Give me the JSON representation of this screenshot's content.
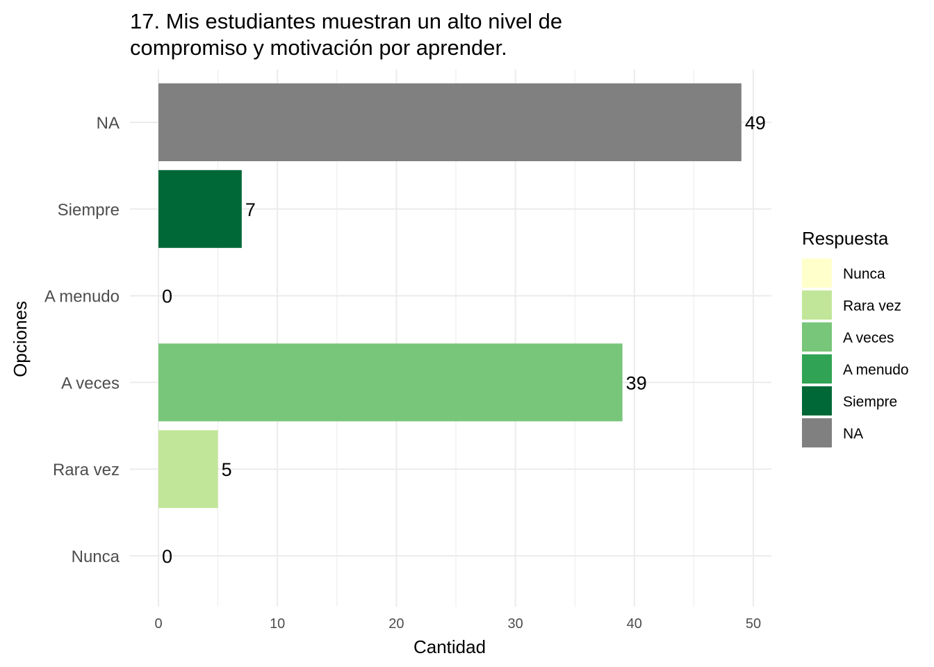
{
  "chart_data": {
    "type": "bar",
    "orientation": "horizontal",
    "title": "17. Mis estudiantes muestran un alto nivel de compromiso y motivación por aprender.",
    "title_lines": [
      "17. Mis estudiantes muestran un alto nivel de",
      "compromiso y motivación por aprender."
    ],
    "xlabel": "Cantidad",
    "ylabel": "Opciones",
    "xlim": [
      0,
      51.5
    ],
    "x_ticks": [
      0,
      10,
      20,
      30,
      40,
      50
    ],
    "categories": [
      "Nunca",
      "Rara vez",
      "A veces",
      "A menudo",
      "Siempre",
      "NA"
    ],
    "values": [
      0,
      5,
      39,
      0,
      7,
      49
    ],
    "colors": {
      "Nunca": "#ffffcc",
      "Rara vez": "#c2e699",
      "A veces": "#78c679",
      "A menudo": "#31a354",
      "Siempre": "#006837",
      "NA": "#808080"
    },
    "grid": true,
    "legend": {
      "title": "Respuesta",
      "position": "right",
      "entries": [
        "Nunca",
        "Rara vez",
        "A veces",
        "A menudo",
        "Siempre",
        "NA"
      ]
    }
  }
}
